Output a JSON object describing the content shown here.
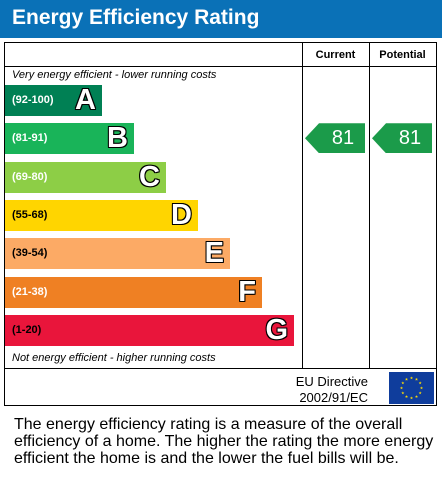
{
  "title": "Energy Efficiency Rating",
  "columns": {
    "current": "Current",
    "potential": "Potential"
  },
  "notes": {
    "top": "Very energy efficient - lower running costs",
    "bottom": "Not energy efficient - higher running costs"
  },
  "chart_data": {
    "type": "bar",
    "bands": [
      {
        "letter": "A",
        "range": "(92-100)",
        "color": "#008054"
      },
      {
        "letter": "B",
        "range": "(81-91)",
        "color": "#19b459"
      },
      {
        "letter": "C",
        "range": "(69-80)",
        "color": "#8dce46"
      },
      {
        "letter": "D",
        "range": "(55-68)",
        "color": "#ffd500"
      },
      {
        "letter": "E",
        "range": "(39-54)",
        "color": "#fcaa65"
      },
      {
        "letter": "F",
        "range": "(21-38)",
        "color": "#ef8023"
      },
      {
        "letter": "G",
        "range": "(1-20)",
        "color": "#e9153b"
      }
    ],
    "current": 81,
    "potential": 81,
    "indicator_color": "#1b9b4a"
  },
  "footer": {
    "directive_line1": "EU Directive",
    "directive_line2": "2002/91/EC"
  },
  "description": "The energy efficiency rating is a measure of the overall efficiency of a home. The higher the rating the more energy efficient the home is and the lower the fuel bills will be."
}
